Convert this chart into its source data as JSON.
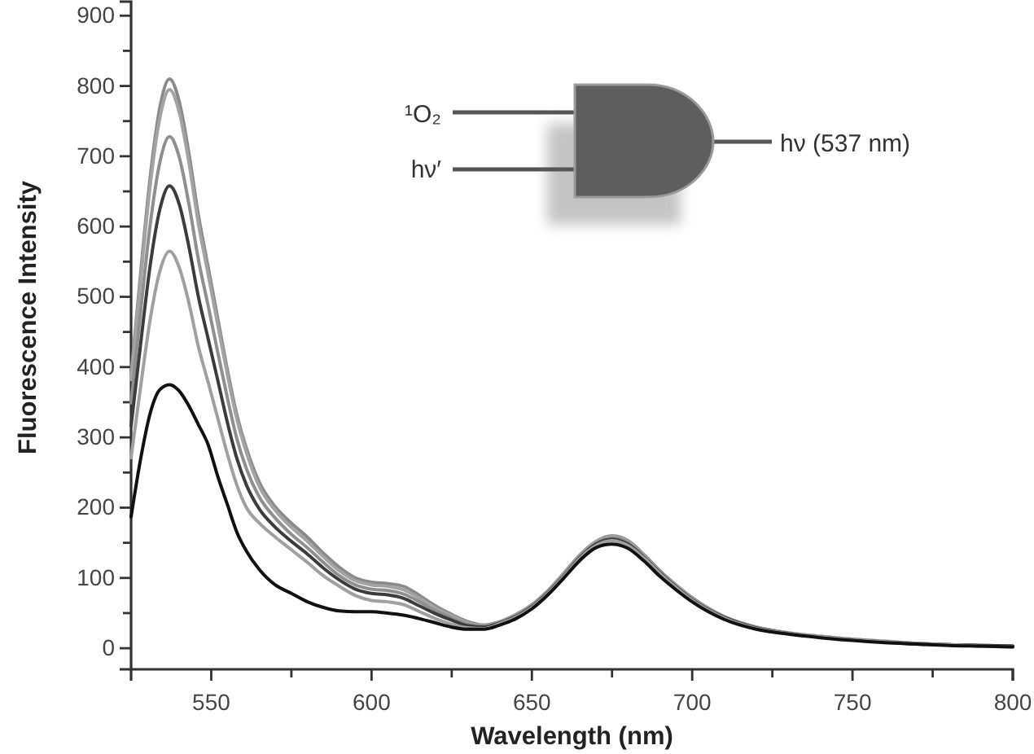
{
  "chart_data": {
    "type": "line",
    "xlabel": "Wavelength (nm)",
    "ylabel": "Fluorescence Intensity",
    "xlim": [
      525,
      800
    ],
    "ylim": [
      -30,
      920
    ],
    "xticks": [
      550,
      {
        "value": 575,
        "label": null
      },
      600,
      {
        "value": 625,
        "label": null
      },
      650,
      {
        "value": 675,
        "label": null
      },
      700,
      {
        "value": 725,
        "label": null
      },
      750,
      {
        "value": 775,
        "label": null
      },
      800
    ],
    "yticks": [
      0,
      {
        "value": 50,
        "label": null
      },
      100,
      {
        "value": 150,
        "label": null
      },
      200,
      {
        "value": 250,
        "label": null
      },
      300,
      {
        "value": 350,
        "label": null
      },
      400,
      {
        "value": 450,
        "label": null
      },
      500,
      {
        "value": 550,
        "label": null
      },
      600,
      {
        "value": 650,
        "label": null
      },
      700,
      {
        "value": 750,
        "label": null
      },
      800,
      {
        "value": 850,
        "label": null
      },
      900
    ],
    "x": [
      525,
      528,
      531,
      534,
      537,
      540,
      543,
      546,
      549,
      552,
      555,
      558,
      561,
      565,
      570,
      575,
      580,
      585,
      590,
      595,
      600,
      605,
      610,
      615,
      620,
      625,
      630,
      635,
      640,
      645,
      650,
      655,
      660,
      665,
      670,
      675,
      680,
      685,
      690,
      695,
      700,
      710,
      720,
      730,
      740,
      750,
      760,
      770,
      780,
      790,
      800
    ],
    "series": [
      {
        "color": "#8a8a8a",
        "values": [
          389,
          535,
          672,
          770,
          810,
          778,
          705,
          616,
          543,
          470,
          397,
          332,
          284,
          236,
          201,
          178,
          158,
          135,
          115,
          100,
          94,
          92,
          88,
          75,
          60,
          48,
          38,
          33,
          38,
          48,
          62,
          82,
          107,
          133,
          152,
          160,
          153,
          133,
          110,
          90,
          72,
          45,
          30,
          22,
          17,
          13,
          10,
          7,
          5,
          4,
          3
        ]
      },
      {
        "color": "#a3a3a3",
        "values": [
          382,
          525,
          660,
          755,
          795,
          763,
          692,
          604,
          533,
          461,
          390,
          326,
          278,
          230,
          196,
          172,
          152,
          130,
          110,
          96,
          90,
          88,
          83,
          71,
          57,
          46,
          36,
          32,
          37,
          47,
          61,
          81,
          106,
          132,
          151,
          159,
          152,
          132,
          109,
          89,
          71,
          45,
          30,
          22,
          17,
          13,
          10,
          7,
          5,
          4,
          3
        ]
      },
      {
        "color": "#8f8f8f",
        "values": [
          349,
          480,
          604,
          692,
          728,
          699,
          633,
          553,
          488,
          422,
          357,
          298,
          255,
          215,
          185,
          162,
          143,
          122,
          103,
          90,
          84,
          82,
          77,
          66,
          53,
          43,
          34,
          31,
          37,
          46,
          60,
          80,
          104,
          130,
          149,
          157,
          150,
          130,
          108,
          88,
          70,
          44,
          29,
          21,
          16,
          12,
          9,
          7,
          5,
          4,
          3
        ]
      },
      {
        "color": "#3c3c3c",
        "values": [
          316,
          434,
          546,
          625,
          658,
          632,
          572,
          500,
          441,
          382,
          322,
          270,
          232,
          198,
          172,
          152,
          134,
          114,
          97,
          84,
          78,
          76,
          71,
          60,
          49,
          40,
          32,
          30,
          36,
          45,
          59,
          79,
          103,
          129,
          148,
          155,
          148,
          129,
          107,
          87,
          69,
          44,
          29,
          21,
          16,
          12,
          9,
          6,
          5,
          4,
          3
        ]
      },
      {
        "color": "#a0a0a0",
        "values": [
          271,
          373,
          469,
          537,
          565,
          542,
          492,
          429,
          379,
          328,
          277,
          232,
          200,
          178,
          158,
          140,
          122,
          103,
          88,
          75,
          68,
          66,
          62,
          52,
          42,
          34,
          29,
          28,
          35,
          44,
          58,
          78,
          102,
          128,
          146,
          153,
          146,
          128,
          106,
          86,
          68,
          43,
          28,
          21,
          16,
          12,
          9,
          6,
          5,
          3,
          2
        ]
      },
      {
        "color": "#111111",
        "values": [
          187,
          270,
          335,
          368,
          375,
          366,
          345,
          318,
          290,
          245,
          205,
          165,
          138,
          112,
          90,
          78,
          66,
          58,
          53,
          52,
          52,
          50,
          47,
          42,
          36,
          30,
          27,
          27,
          33,
          42,
          56,
          76,
          100,
          125,
          143,
          148,
          142,
          124,
          102,
          83,
          66,
          41,
          27,
          20,
          15,
          11,
          8,
          6,
          4,
          3,
          2
        ]
      }
    ],
    "annotations": [
      "¹O₂",
      "hν′",
      "hν (537 nm)"
    ]
  }
}
